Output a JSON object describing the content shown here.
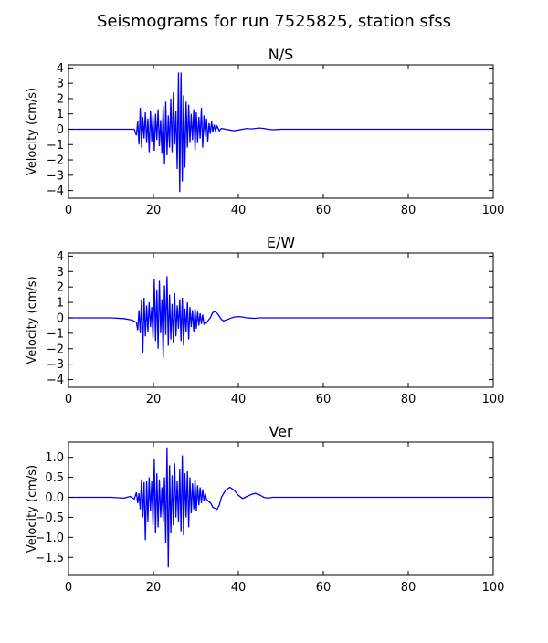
{
  "figure": {
    "title": "Seismograms for run 7525825, station sfss"
  },
  "style": {
    "trace_color": "#0000ff",
    "axis_color": "#000000",
    "background": "#ffffff"
  },
  "chart_data": [
    {
      "type": "line",
      "title": "N/S",
      "xlabel": "",
      "ylabel": "Velocity (cm/s)",
      "xlim": [
        0,
        100
      ],
      "ylim": [
        -4.5,
        4.2
      ],
      "xticks": [
        0,
        20,
        40,
        60,
        80,
        100
      ],
      "yticks": [
        -4,
        -3,
        -2,
        -1,
        0,
        1,
        2,
        3,
        4
      ],
      "grid": false,
      "legend": "none",
      "series": [
        {
          "x": [
            0,
            15.5,
            16.0,
            16.3,
            16.6,
            16.9,
            17.2,
            17.5,
            17.8,
            18.1,
            18.4,
            18.7,
            19.0,
            19.3,
            19.6,
            19.9,
            20.2,
            20.5,
            20.8,
            21.1,
            21.4,
            21.7,
            22.0,
            22.3,
            22.6,
            22.9,
            23.2,
            23.5,
            23.8,
            24.1,
            24.4,
            24.7,
            25.0,
            25.3,
            25.6,
            25.9,
            26.2,
            26.5,
            26.8,
            27.1,
            27.4,
            27.7,
            28.0,
            28.3,
            28.6,
            28.9,
            29.2,
            29.5,
            29.8,
            30.1,
            30.4,
            30.7,
            31.0,
            31.3,
            31.6,
            31.9,
            32.2,
            32.5,
            32.8,
            33.1,
            33.4,
            33.7,
            34.0,
            34.3,
            34.6,
            35.0,
            35.5,
            36.0,
            37.0,
            38.0,
            39.0,
            40.0,
            41.0,
            42.0,
            43.0,
            44.0,
            45.0,
            46.0,
            47.0,
            48.0,
            49.0,
            50.0,
            52.0,
            55.0,
            60.0,
            100
          ],
          "y": [
            0,
            0,
            -0.4,
            0.5,
            -1.0,
            1.4,
            -1.2,
            0.8,
            -0.6,
            1.1,
            -0.9,
            0.7,
            -1.5,
            1.2,
            -0.8,
            0.9,
            -1.4,
            1.0,
            -0.7,
            1.3,
            -1.1,
            0.6,
            -1.6,
            1.5,
            -2.3,
            1.8,
            -1.7,
            0.9,
            -1.2,
            2.0,
            -1.5,
            2.4,
            -1.0,
            1.2,
            -2.6,
            3.7,
            -4.1,
            3.7,
            -3.4,
            2.2,
            -2.5,
            1.8,
            -1.2,
            1.6,
            -0.9,
            1.0,
            -0.7,
            1.3,
            -1.4,
            1.1,
            -0.9,
            0.8,
            -0.6,
            1.4,
            -1.2,
            0.9,
            -0.5,
            0.7,
            -0.8,
            0.4,
            -0.3,
            0.5,
            -0.2,
            0.3,
            -0.1,
            0.2,
            -0.1,
            0.05,
            0,
            -0.05,
            -0.1,
            -0.05,
            0,
            0.05,
            0.02,
            0.05,
            0.08,
            0.05,
            0,
            -0.03,
            -0.02,
            0,
            0,
            0,
            0,
            0
          ]
        }
      ]
    },
    {
      "type": "line",
      "title": "E/W",
      "xlabel": "",
      "ylabel": "Velocity (cm/s)",
      "xlim": [
        0,
        100
      ],
      "ylim": [
        -4.5,
        4.2
      ],
      "xticks": [
        0,
        20,
        40,
        60,
        80,
        100
      ],
      "yticks": [
        -4,
        -3,
        -2,
        -1,
        0,
        1,
        2,
        3,
        4
      ],
      "grid": false,
      "legend": "none",
      "series": [
        {
          "x": [
            0,
            10.0,
            13.0,
            15.0,
            16.0,
            16.3,
            16.6,
            16.9,
            17.2,
            17.5,
            17.8,
            18.1,
            18.4,
            18.7,
            19.0,
            19.3,
            19.6,
            19.9,
            20.2,
            20.5,
            20.8,
            21.1,
            21.4,
            21.7,
            22.0,
            22.3,
            22.6,
            22.9,
            23.2,
            23.5,
            23.8,
            24.1,
            24.4,
            24.7,
            25.0,
            25.3,
            25.6,
            25.9,
            26.2,
            26.5,
            26.8,
            27.1,
            27.4,
            27.7,
            28.0,
            28.3,
            28.6,
            28.9,
            29.2,
            29.5,
            29.8,
            30.1,
            30.4,
            30.7,
            31.0,
            31.3,
            31.6,
            31.9,
            32.2,
            32.5,
            32.8,
            33.1,
            33.4,
            33.7,
            34.0,
            34.5,
            35.0,
            35.5,
            36.0,
            36.5,
            37.0,
            38.0,
            39.0,
            40.0,
            41.0,
            42.0,
            43.0,
            44.0,
            45.0,
            46.0,
            47.0,
            48.0,
            49.0,
            50.0,
            52.0,
            60.0,
            100
          ],
          "y": [
            0,
            0,
            -0.05,
            -0.15,
            -0.3,
            -0.8,
            0.5,
            -1.0,
            1.2,
            -2.3,
            1.3,
            -1.2,
            0.8,
            -0.9,
            1.0,
            -0.6,
            0.7,
            -1.3,
            2.5,
            -1.5,
            1.8,
            -2.0,
            2.4,
            -1.0,
            1.2,
            -2.6,
            2.1,
            -1.1,
            2.7,
            -1.8,
            1.5,
            -1.4,
            0.9,
            -1.6,
            1.6,
            -1.2,
            0.8,
            -0.7,
            1.2,
            -1.5,
            1.3,
            -1.8,
            0.6,
            -0.9,
            1.0,
            -1.4,
            0.7,
            -0.6,
            0.5,
            -0.9,
            0.6,
            -0.7,
            0.4,
            -0.5,
            0.3,
            -0.4,
            0.2,
            -0.4,
            -0.3,
            -0.35,
            -0.2,
            -0.1,
            0.0,
            0.2,
            0.35,
            0.4,
            0.3,
            0.1,
            -0.1,
            -0.2,
            -0.15,
            -0.05,
            0.05,
            0.08,
            0.05,
            0,
            -0.02,
            -0.03,
            0,
            0,
            0,
            0,
            0,
            0,
            0,
            0,
            0
          ]
        }
      ]
    },
    {
      "type": "line",
      "title": "Ver",
      "xlabel": "",
      "ylabel": "Velocity (cm/s)",
      "xlim": [
        0,
        100
      ],
      "ylim": [
        -1.95,
        1.38
      ],
      "xticks": [
        0,
        20,
        40,
        60,
        80,
        100
      ],
      "yticks": [
        -1.5,
        -1.0,
        -0.5,
        0.0,
        0.5,
        1.0
      ],
      "yticklabels": [
        "−1.5",
        "−1.0",
        "−0.5",
        "0.0",
        "0.5",
        "1.0"
      ],
      "grid": false,
      "legend": "none",
      "series": [
        {
          "x": [
            0,
            10.0,
            13.0,
            14.5,
            15.5,
            16.0,
            16.3,
            16.6,
            16.9,
            17.2,
            17.5,
            17.8,
            18.1,
            18.4,
            18.7,
            19.0,
            19.3,
            19.6,
            19.9,
            20.2,
            20.5,
            20.8,
            21.1,
            21.4,
            21.7,
            22.0,
            22.3,
            22.6,
            22.9,
            23.2,
            23.5,
            23.8,
            24.1,
            24.4,
            24.7,
            25.0,
            25.3,
            25.6,
            25.9,
            26.2,
            26.5,
            26.8,
            27.1,
            27.4,
            27.7,
            28.0,
            28.3,
            28.6,
            28.9,
            29.2,
            29.5,
            29.8,
            30.1,
            30.4,
            30.7,
            31.0,
            31.3,
            31.6,
            31.9,
            32.2,
            32.5,
            33.0,
            33.5,
            34.0,
            35.0,
            35.5,
            36.0,
            37.0,
            38.0,
            39.0,
            40.0,
            41.0,
            42.0,
            43.0,
            44.0,
            45.0,
            46.0,
            47.0,
            48.0,
            50.0,
            55.0,
            60.0,
            100
          ],
          "y": [
            0,
            0,
            -0.02,
            0.02,
            -0.04,
            0.12,
            -0.15,
            0.1,
            -0.3,
            0.45,
            -0.5,
            0.38,
            -1.07,
            0.4,
            -0.6,
            0.5,
            -0.35,
            0.4,
            -0.7,
            0.95,
            -0.9,
            0.6,
            -0.75,
            0.45,
            -0.5,
            0.25,
            -0.6,
            0.5,
            -1.15,
            1.25,
            -1.75,
            0.8,
            -0.9,
            0.55,
            -0.7,
            0.85,
            -0.5,
            0.4,
            -0.6,
            0.7,
            -0.85,
            1.05,
            -0.95,
            0.6,
            -0.5,
            0.65,
            -0.75,
            0.5,
            -0.4,
            0.35,
            -0.3,
            0.45,
            -0.35,
            0.3,
            -0.2,
            0.25,
            -0.15,
            0.2,
            -0.1,
            0.1,
            -0.05,
            -0.1,
            -0.15,
            -0.25,
            -0.3,
            -0.2,
            0.0,
            0.18,
            0.25,
            0.18,
            0.05,
            -0.03,
            0.02,
            0.07,
            0.1,
            0.06,
            0.0,
            -0.02,
            0.0,
            0.0,
            0.0,
            0.0,
            0.0
          ]
        }
      ]
    }
  ]
}
